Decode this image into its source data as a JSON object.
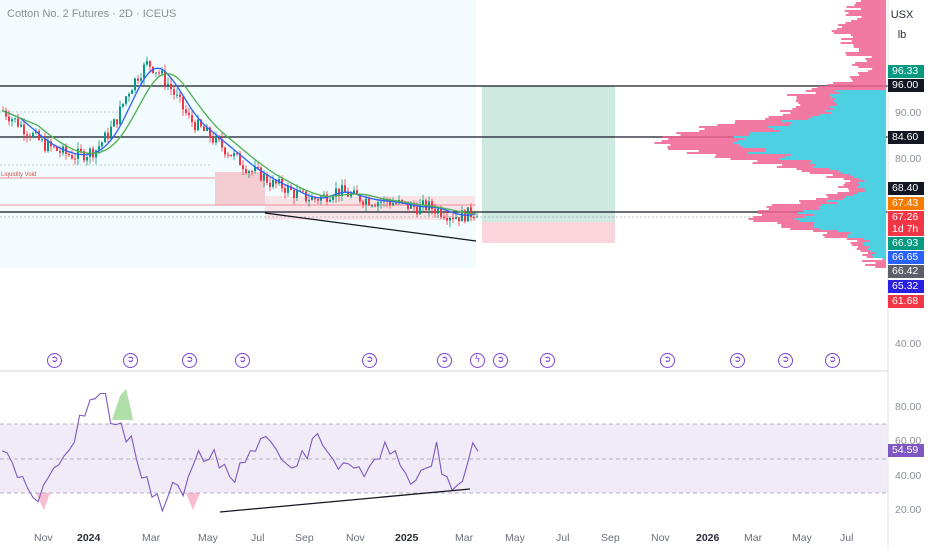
{
  "header": {
    "title": "Cotton No. 2 Futures · 2D · ICEUS",
    "currency": "USX",
    "unit": "lb"
  },
  "annotations": {
    "liquidity_void": "Liquidity Void"
  },
  "price_axis": {
    "ticks": [
      "90.00",
      "80.00",
      "40.00"
    ],
    "badges": [
      {
        "label": "96.33",
        "color": "#089981"
      },
      {
        "label": "96.00",
        "color": "#131722"
      },
      {
        "label": "84.60",
        "color": "#131722"
      },
      {
        "label": "68.40",
        "color": "#131722"
      },
      {
        "label": "67.43",
        "color": "#f57c00"
      },
      {
        "label": "67.26",
        "color": "#f23645"
      },
      {
        "label": "1d 7h",
        "color": "#f23645"
      },
      {
        "label": "66.93",
        "color": "#089981"
      },
      {
        "label": "66.65",
        "color": "#2962ff"
      },
      {
        "label": "66.42",
        "color": "#5d606b"
      },
      {
        "label": "65.32",
        "color": "#2b1fe0"
      },
      {
        "label": "61.68",
        "color": "#f23645"
      }
    ]
  },
  "rsi_axis": {
    "ticks": [
      "80.00",
      "60.00",
      "40.00",
      "20.00"
    ],
    "value_badge": {
      "label": "54.59",
      "color": "#7e57c2"
    }
  },
  "time_axis": {
    "labels": [
      {
        "text": "Nov",
        "bold": false
      },
      {
        "text": "2024",
        "bold": true
      },
      {
        "text": "Mar",
        "bold": false
      },
      {
        "text": "May",
        "bold": false
      },
      {
        "text": "Jul",
        "bold": false
      },
      {
        "text": "Sep",
        "bold": false
      },
      {
        "text": "Nov",
        "bold": false
      },
      {
        "text": "2025",
        "bold": true
      },
      {
        "text": "Mar",
        "bold": false
      },
      {
        "text": "May",
        "bold": false
      },
      {
        "text": "Jul",
        "bold": false
      },
      {
        "text": "Sep",
        "bold": false
      },
      {
        "text": "Nov",
        "bold": false
      },
      {
        "text": "2026",
        "bold": true
      },
      {
        "text": "Mar",
        "bold": false
      },
      {
        "text": "May",
        "bold": false
      },
      {
        "text": "Jul",
        "bold": false
      }
    ]
  },
  "events": [
    {
      "icon": "dividend-arrow-icon",
      "glyph": "➲"
    },
    {
      "icon": "dividend-arrow-icon",
      "glyph": "➲"
    },
    {
      "icon": "dividend-arrow-icon",
      "glyph": "➲"
    },
    {
      "icon": "dividend-arrow-icon",
      "glyph": "➲"
    },
    {
      "icon": "dividend-arrow-icon",
      "glyph": "➲"
    },
    {
      "icon": "dividend-arrow-icon",
      "glyph": "➲"
    },
    {
      "icon": "lightning-icon",
      "glyph": "ϟ"
    },
    {
      "icon": "dividend-arrow-icon",
      "glyph": "➲"
    },
    {
      "icon": "dividend-arrow-icon",
      "glyph": "➲"
    },
    {
      "icon": "dividend-arrow-icon",
      "glyph": "➲"
    },
    {
      "icon": "dividend-arrow-icon",
      "glyph": "➲"
    },
    {
      "icon": "dividend-arrow-icon",
      "glyph": "➲"
    },
    {
      "icon": "dividend-arrow-icon",
      "glyph": "➲"
    }
  ],
  "colors": {
    "bull": "#089981",
    "bear": "#f23645",
    "ma_fast": "#2962ff",
    "ma_slow": "#4caf50",
    "rsi_line": "#7e57c2",
    "profile_pink": "#f06292",
    "profile_blue": "#4dd0e1"
  },
  "chart_data": {
    "type": "candlestick",
    "price_series": [
      90,
      88,
      86,
      84,
      82,
      81,
      80,
      79.5,
      80,
      81,
      84,
      88,
      94,
      98,
      101,
      99,
      96,
      92,
      88,
      86,
      84,
      82,
      80,
      78,
      76,
      75,
      73,
      72.5,
      71,
      70,
      69.5,
      70,
      71.5,
      71,
      70,
      69.5,
      69,
      69,
      68.5,
      68,
      67.5,
      67.8,
      67,
      66,
      65.5,
      66,
      66.9
    ],
    "rsi_series": [
      55,
      48,
      40,
      28,
      35,
      45,
      52,
      60,
      75,
      85,
      88,
      70,
      60,
      50,
      40,
      30,
      28,
      35,
      40,
      55,
      50,
      45,
      40,
      48,
      55,
      62,
      60,
      50,
      45,
      55,
      62,
      58,
      50,
      48,
      45,
      40,
      50,
      60,
      55,
      42,
      38,
      45,
      60,
      40,
      35,
      48,
      54.59
    ],
    "rsi_bands": [
      70,
      50,
      30
    ]
  }
}
